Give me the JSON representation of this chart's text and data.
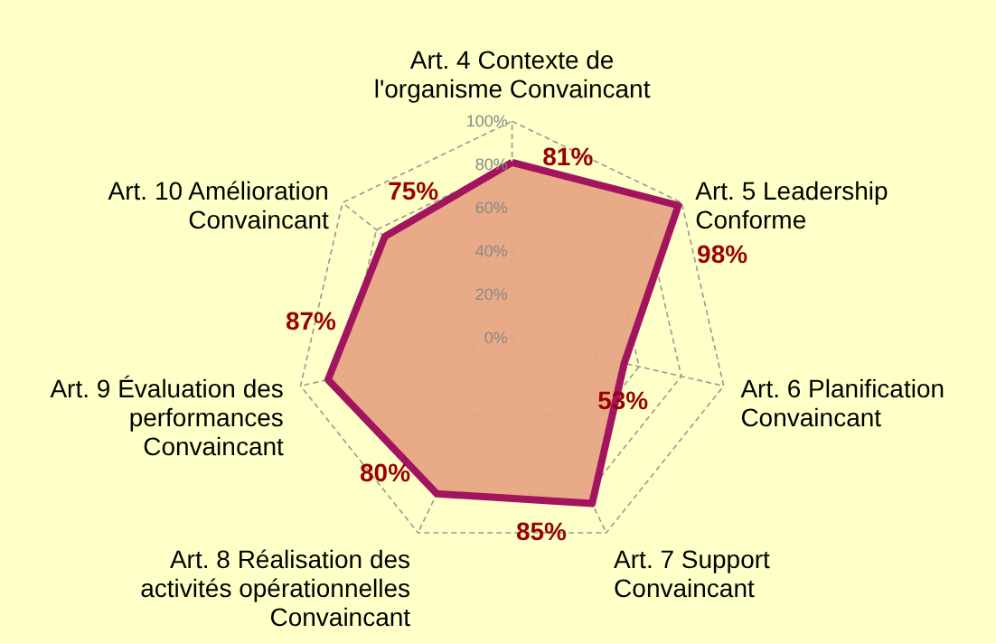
{
  "chart_data": {
    "type": "radar",
    "categories": [
      "Art. 4 Contexte de\nl'organisme Convaincant",
      "Art. 5 Leadership\nConforme",
      "Art. 6 Planification\nConvaincant",
      "Art. 7 Support\nConvaincant",
      "Art. 8 Réalisation des\nactivités opérationnelles\nConvaincant",
      "Art. 9 Évaluation des\nperformances\nConvaincant",
      "Art. 10 Amélioration\nConvaincant"
    ],
    "series": [
      {
        "color": "#a3145f",
        "values": [
          81,
          98,
          53,
          85,
          80,
          87,
          75
        ],
        "value_labels": [
          "81%",
          "98%",
          "53%",
          "85%",
          "80%",
          "87%",
          "75%"
        ]
      }
    ],
    "ylim": [
      0,
      100
    ],
    "yticks": [
      {
        "value": 0,
        "label": "0%"
      },
      {
        "value": 20,
        "label": "20%"
      },
      {
        "value": 40,
        "label": "40%"
      },
      {
        "value": 60,
        "label": "60%"
      },
      {
        "value": 80,
        "label": "80%"
      },
      {
        "value": 100,
        "label": "100%"
      }
    ],
    "grid": true
  }
}
